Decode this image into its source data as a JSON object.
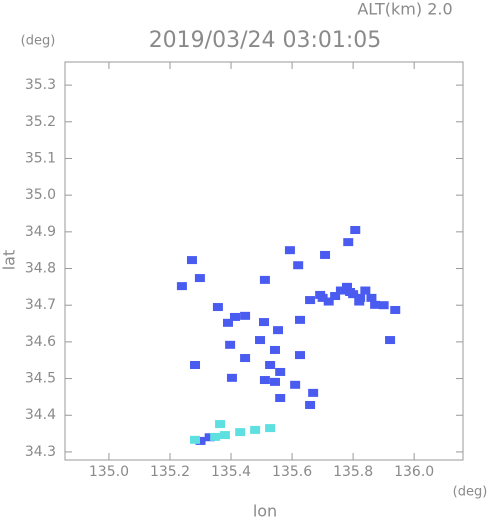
{
  "chart_data": {
    "type": "scatter",
    "title": "2019/03/24 03:01:05",
    "subtitle": "ALT(km) 2.0",
    "y_unit": "(deg)",
    "x_unit": "(deg)",
    "x_label": "lon",
    "y_label": "lat",
    "xlim": [
      134.856,
      136.16
    ],
    "ylim": [
      34.278,
      35.363
    ],
    "xticks": [
      {
        "value": 135,
        "label": "135.0"
      },
      135.2,
      135.4,
      135.6,
      135.8,
      {
        "value": 136,
        "label": "136.0"
      }
    ],
    "yticks": [
      34.3,
      34.4,
      34.5,
      34.6,
      34.7,
      34.8,
      34.9,
      {
        "value": 35,
        "label": "35.0"
      },
      35.1,
      35.2,
      35.3
    ],
    "series": [
      {
        "color": "#4a5cf0",
        "x": [
          135.272,
          135.298,
          135.239,
          135.357,
          135.413,
          135.446,
          135.39,
          135.508,
          135.554,
          135.626,
          135.659,
          135.692,
          135.741,
          135.79,
          135.823,
          135.872,
          135.938,
          135.784,
          135.807,
          135.708,
          135.593,
          135.62,
          135.511,
          135.495,
          135.544,
          135.528,
          135.561,
          135.511,
          135.544,
          135.61,
          135.626,
          135.561,
          135.669,
          135.659,
          135.397,
          135.403,
          135.282,
          135.921,
          135.446,
          135.76,
          135.78,
          135.8,
          135.82,
          135.84,
          135.72,
          135.7,
          135.86,
          135.9,
          135.3,
          135.33
        ],
        "y": [
          34.823,
          34.774,
          34.752,
          34.695,
          34.668,
          34.671,
          34.652,
          34.654,
          34.632,
          34.66,
          34.714,
          34.728,
          34.725,
          34.736,
          34.72,
          34.701,
          34.687,
          34.872,
          34.905,
          34.837,
          34.85,
          34.809,
          34.769,
          34.605,
          34.578,
          34.537,
          34.518,
          34.496,
          34.491,
          34.483,
          34.564,
          34.447,
          34.461,
          34.428,
          34.592,
          34.502,
          34.537,
          34.605,
          34.556,
          34.74,
          34.75,
          34.73,
          34.71,
          34.74,
          34.71,
          34.72,
          34.72,
          34.7,
          34.33,
          34.34
        ]
      },
      {
        "color": "#5fe0e0",
        "x": [
          135.282,
          135.348,
          135.38,
          135.43,
          135.479,
          135.528,
          135.364
        ],
        "y": [
          34.333,
          34.341,
          34.346,
          34.354,
          34.36,
          34.365,
          34.376
        ]
      }
    ]
  }
}
